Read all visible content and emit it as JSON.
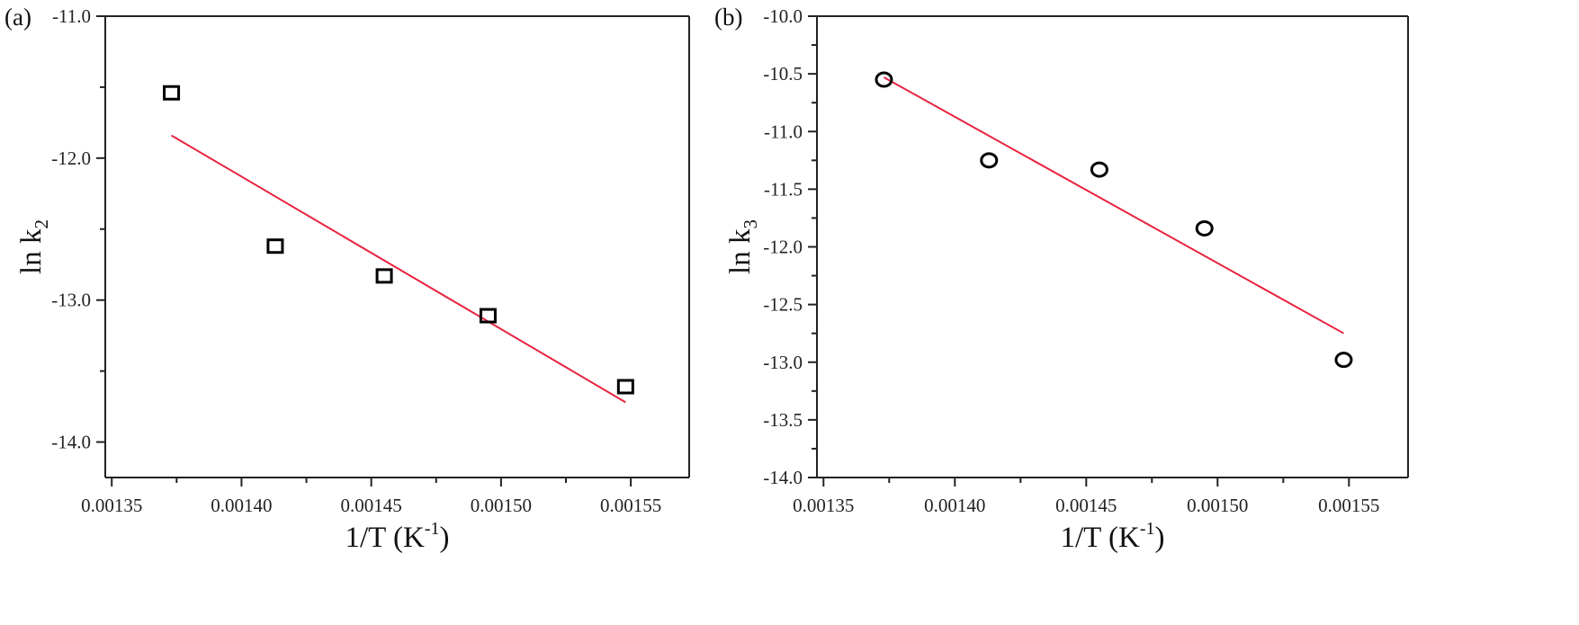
{
  "chart_data": [
    {
      "type": "scatter",
      "panel_label": "(a)",
      "marker": "square",
      "xlabel": {
        "main": "1/T (K",
        "sup": "-1",
        "tail": ")"
      },
      "ylabel": {
        "main": "ln k",
        "sub": "2"
      },
      "xlim": [
        0.0013475,
        0.0015725
      ],
      "ylim": [
        -14.25,
        -11.0
      ],
      "xticks": [
        0.00135,
        0.0014,
        0.00145,
        0.0015,
        0.00155
      ],
      "xtick_labels": [
        "0.00135",
        "0.00140",
        "0.00145",
        "0.00150",
        "0.00155"
      ],
      "yticks": [
        -11.0,
        -12.0,
        -13.0,
        -14.0
      ],
      "ytick_labels": [
        "-11.0",
        "-12.0",
        "-13.0",
        "-14.0"
      ],
      "grid": false,
      "series": [
        {
          "x": [
            0.001373,
            0.001413,
            0.001455,
            0.001495,
            0.001548
          ],
          "y": [
            -11.54,
            -12.62,
            -12.83,
            -13.11,
            -13.61
          ]
        }
      ],
      "fit_line": {
        "x": [
          0.001373,
          0.001548
        ],
        "y": [
          -11.84,
          -13.72
        ]
      }
    },
    {
      "type": "scatter",
      "panel_label": "(b)",
      "marker": "circle",
      "xlabel": {
        "main": "1/T (K",
        "sup": "-1",
        "tail": ")"
      },
      "ylabel": {
        "main": "ln k",
        "sub": "3"
      },
      "xlim": [
        0.0013475,
        0.0015725
      ],
      "ylim": [
        -14.0,
        -10.0
      ],
      "xticks": [
        0.00135,
        0.0014,
        0.00145,
        0.0015,
        0.00155
      ],
      "xtick_labels": [
        "0.00135",
        "0.00140",
        "0.00145",
        "0.00150",
        "0.00155"
      ],
      "yticks": [
        -10.0,
        -10.5,
        -11.0,
        -11.5,
        -12.0,
        -12.5,
        -13.0,
        -13.5,
        -14.0
      ],
      "ytick_labels": [
        "-10.0",
        "-10.5",
        "-11.0",
        "-11.5",
        "-12.0",
        "-12.5",
        "-13.0",
        "-13.5",
        "-14.0"
      ],
      "grid": false,
      "series": [
        {
          "x": [
            0.001373,
            0.001413,
            0.001455,
            0.001495,
            0.001548
          ],
          "y": [
            -10.55,
            -11.25,
            -11.33,
            -11.84,
            -12.98
          ]
        }
      ],
      "fit_line": {
        "x": [
          0.001373,
          0.001548
        ],
        "y": [
          -10.53,
          -12.75
        ]
      }
    }
  ],
  "colors": {
    "axis": "#222222",
    "marker": "#000000",
    "fit_line": "#e8233f"
  }
}
